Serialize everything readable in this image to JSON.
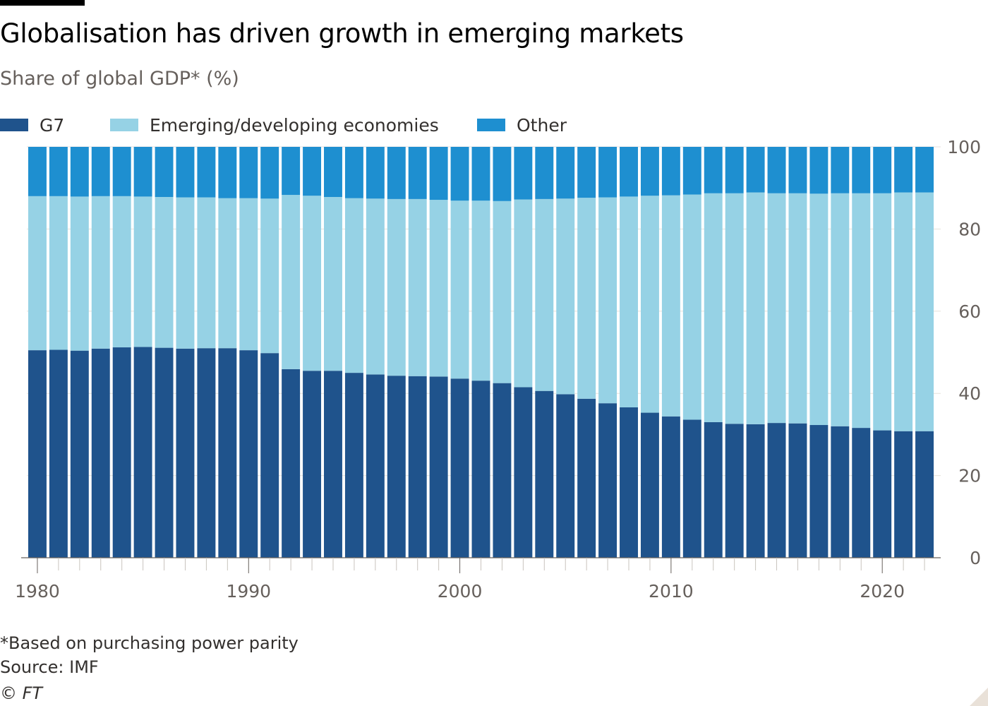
{
  "header": {
    "title": "Globalisation has driven growth in emerging markets",
    "subtitle": "Share of global GDP* (%)"
  },
  "footer": {
    "note": "*Based on purchasing power parity",
    "source": "Source: IMF",
    "copyright": "© FT"
  },
  "colors": {
    "g7": "#1f538c",
    "emerging": "#96d2e5",
    "other": "#1e8fd0",
    "axis": "#66605c",
    "gridline": "#e6e2dc"
  },
  "chart_data": {
    "type": "bar",
    "stacked": true,
    "x": [
      1980,
      1981,
      1982,
      1983,
      1984,
      1985,
      1986,
      1987,
      1988,
      1989,
      1990,
      1991,
      1992,
      1993,
      1994,
      1995,
      1996,
      1997,
      1998,
      1999,
      2000,
      2001,
      2002,
      2003,
      2004,
      2005,
      2006,
      2007,
      2008,
      2009,
      2010,
      2011,
      2012,
      2013,
      2014,
      2015,
      2016,
      2017,
      2018,
      2019,
      2020,
      2021,
      2022
    ],
    "series": [
      {
        "name": "G7",
        "color": "#1f538c",
        "values": [
          50.5,
          50.6,
          50.4,
          50.9,
          51.2,
          51.3,
          51.1,
          50.9,
          51.0,
          51.0,
          50.5,
          49.8,
          45.9,
          45.5,
          45.5,
          45.0,
          44.6,
          44.3,
          44.2,
          44.1,
          43.6,
          43.1,
          42.5,
          41.5,
          40.6,
          39.8,
          38.7,
          37.6,
          36.6,
          35.3,
          34.4,
          33.6,
          33.0,
          32.6,
          32.5,
          32.8,
          32.7,
          32.3,
          32.0,
          31.6,
          31.0,
          30.8,
          30.8
        ]
      },
      {
        "name": "Emerging/developing economies",
        "color": "#96d2e5",
        "values": [
          37.5,
          37.4,
          37.5,
          37.1,
          36.8,
          36.6,
          36.7,
          36.8,
          36.7,
          36.5,
          37.0,
          37.6,
          42.4,
          42.6,
          42.3,
          42.5,
          42.8,
          43.0,
          43.1,
          43.0,
          43.3,
          43.8,
          44.3,
          45.7,
          46.7,
          47.6,
          48.9,
          50.1,
          51.3,
          52.8,
          53.8,
          54.8,
          55.7,
          56.1,
          56.4,
          55.9,
          56.0,
          56.3,
          56.7,
          57.1,
          57.7,
          58.1,
          58.1
        ]
      },
      {
        "name": "Other",
        "color": "#1e8fd0",
        "values": [
          12.0,
          12.0,
          12.1,
          12.0,
          12.0,
          12.1,
          12.2,
          12.3,
          12.3,
          12.5,
          12.5,
          12.6,
          11.7,
          11.9,
          12.2,
          12.5,
          12.6,
          12.7,
          12.7,
          12.9,
          13.1,
          13.1,
          13.2,
          12.8,
          12.7,
          12.6,
          12.4,
          12.3,
          12.1,
          11.9,
          11.8,
          11.6,
          11.3,
          11.3,
          11.1,
          11.3,
          11.3,
          11.4,
          11.3,
          11.3,
          11.3,
          11.1,
          11.1
        ]
      }
    ],
    "x_ticks": [
      1980,
      1990,
      2000,
      2010,
      2020
    ],
    "y_ticks": [
      0,
      20,
      40,
      60,
      80,
      100
    ],
    "ylim": [
      0,
      100
    ],
    "xlabel": "",
    "ylabel": "",
    "legend": "top-left",
    "y_axis_position": "right",
    "grid": true
  }
}
